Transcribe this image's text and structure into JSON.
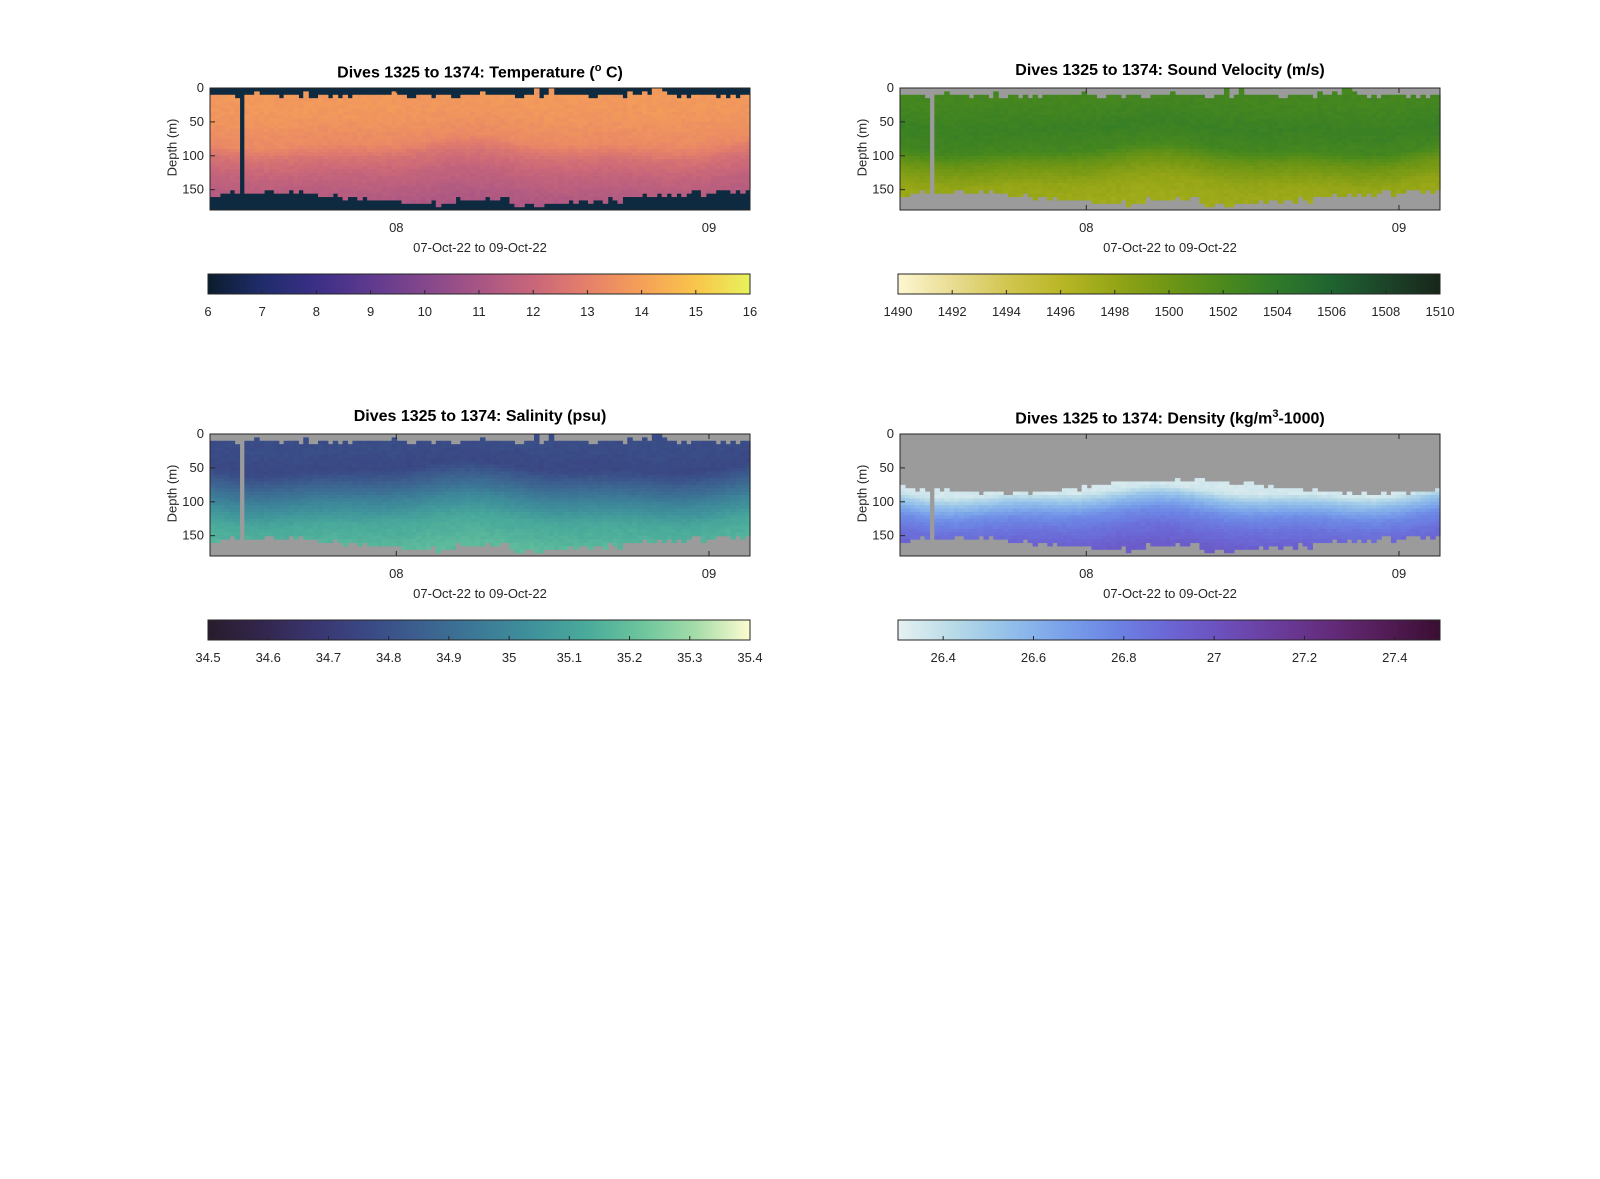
{
  "panels": [
    {
      "id": "temperature",
      "title_main": "Dives 1325 to 1374: Temperature (",
      "title_sup": "o",
      "title_end": " C)",
      "xlabel": "07-Oct-22 to 09-Oct-22",
      "ylabel": "Depth (m)",
      "background": "#0d2a40",
      "colormap": [
        "#0b1c2c",
        "#1f2c6b",
        "#3b2f86",
        "#5e3a8e",
        "#84478c",
        "#a75585",
        "#c8667a",
        "#e5806a",
        "#f5a058",
        "#f9c54b",
        "#e8f25c"
      ],
      "colorbar_ticks": [
        "6",
        "7",
        "8",
        "9",
        "10",
        "11",
        "12",
        "13",
        "14",
        "15",
        "16"
      ],
      "colorbar_range": [
        6,
        16
      ]
    },
    {
      "id": "sound-velocity",
      "title_main": "Dives 1325 to 1374: Sound Velocity (m/s)",
      "title_sup": "",
      "title_end": "",
      "xlabel": "07-Oct-22 to 09-Oct-22",
      "ylabel": "Depth (m)",
      "background": "#9b9b9b",
      "colormap": [
        "#fdf7d0",
        "#e9dc92",
        "#d2c652",
        "#b9b726",
        "#94a516",
        "#6f9615",
        "#4b8a1c",
        "#2f7a2a",
        "#1f6330",
        "#1c4429",
        "#17261a"
      ],
      "colorbar_ticks": [
        "1490",
        "1492",
        "1494",
        "1496",
        "1498",
        "1500",
        "1502",
        "1504",
        "1506",
        "1508",
        "1510"
      ],
      "colorbar_range": [
        1490,
        1510
      ]
    },
    {
      "id": "salinity",
      "title_main": "Dives 1325 to 1374: Salinity (psu)",
      "title_sup": "",
      "title_end": "",
      "xlabel": "07-Oct-22 to 09-Oct-22",
      "ylabel": "Depth (m)",
      "background": "#9b9b9b",
      "colormap": [
        "#271c2d",
        "#33264d",
        "#393670",
        "#3a4a86",
        "#3c6290",
        "#3c7a97",
        "#3f929b",
        "#4aab9b",
        "#6cc59c",
        "#a5dca9",
        "#fdfcd0"
      ],
      "colorbar_ticks": [
        "34.5",
        "34.6",
        "34.7",
        "34.8",
        "34.9",
        "35",
        "35.1",
        "35.2",
        "35.3",
        "35.4"
      ],
      "colorbar_range": [
        34.5,
        35.4
      ]
    },
    {
      "id": "density",
      "title_main": "Dives 1325 to 1374: Density (kg/m",
      "title_sup": "3",
      "title_end": "-1000)",
      "xlabel": "07-Oct-22 to 09-Oct-22",
      "ylabel": "Depth (m)",
      "background": "#9b9b9b",
      "colormap": [
        "#e6f1f1",
        "#b9dbe8",
        "#94c1ea",
        "#7aa3ea",
        "#6c84e4",
        "#6b66d4",
        "#6c4fbb",
        "#6a3c9b",
        "#632b7a",
        "#521c55",
        "#3a0e33"
      ],
      "colorbar_ticks": [
        "26.4",
        "26.6",
        "26.8",
        "27",
        "27.2",
        "27.4"
      ],
      "colorbar_range": [
        26.3,
        27.5
      ]
    }
  ],
  "chart_data": [
    {
      "type": "heatmap",
      "title": "Dives 1325 to 1374: Temperature (° C)",
      "xlabel": "07-Oct-22 to 09-Oct-22",
      "ylabel": "Depth (m)",
      "x_tick_labels": [
        "08",
        "09"
      ],
      "y_tick_labels": [
        "0",
        "50",
        "100",
        "150"
      ],
      "ylim": [
        180,
        0
      ],
      "colorbar": {
        "min": 6,
        "max": 16,
        "ticks": [
          6,
          7,
          8,
          9,
          10,
          11,
          12,
          13,
          14,
          15,
          16
        ]
      },
      "profile": {
        "depth": [
          5,
          40,
          80,
          100,
          130,
          170
        ],
        "value": [
          13.8,
          13.7,
          13.3,
          12.5,
          11.8,
          11.2
        ]
      }
    },
    {
      "type": "heatmap",
      "title": "Dives 1325 to 1374: Sound Velocity (m/s)",
      "xlabel": "07-Oct-22 to 09-Oct-22",
      "ylabel": "Depth (m)",
      "x_tick_labels": [
        "08",
        "09"
      ],
      "y_tick_labels": [
        "0",
        "50",
        "100",
        "150"
      ],
      "ylim": [
        180,
        0
      ],
      "colorbar": {
        "min": 1490,
        "max": 1510,
        "ticks": [
          1490,
          1492,
          1494,
          1496,
          1498,
          1500,
          1502,
          1504,
          1506,
          1508,
          1510
        ]
      },
      "profile": {
        "depth": [
          20,
          60,
          90,
          110,
          140,
          170
        ],
        "value": [
          1502.5,
          1503.2,
          1502.5,
          1500.2,
          1498.0,
          1497.4
        ]
      }
    },
    {
      "type": "heatmap",
      "title": "Dives 1325 to 1374: Salinity (psu)",
      "xlabel": "07-Oct-22 to 09-Oct-22",
      "ylabel": "Depth (m)",
      "x_tick_labels": [
        "08",
        "09"
      ],
      "y_tick_labels": [
        "0",
        "50",
        "100",
        "150"
      ],
      "ylim": [
        180,
        0
      ],
      "colorbar": {
        "min": 34.5,
        "max": 35.4,
        "ticks": [
          34.5,
          34.6,
          34.7,
          34.8,
          34.9,
          35,
          35.1,
          35.2,
          35.3,
          35.4
        ]
      },
      "profile": {
        "depth": [
          20,
          50,
          80,
          100,
          130,
          170
        ],
        "value": [
          34.78,
          34.76,
          34.9,
          35.0,
          35.12,
          35.18
        ]
      }
    },
    {
      "type": "heatmap",
      "title": "Dives 1325 to 1374: Density (kg/m³-1000)",
      "xlabel": "07-Oct-22 to 09-Oct-22",
      "ylabel": "Depth (m)",
      "x_tick_labels": [
        "08",
        "09"
      ],
      "y_tick_labels": [
        "0",
        "50",
        "100",
        "150"
      ],
      "ylim": [
        180,
        0
      ],
      "colorbar": {
        "min": 26.3,
        "max": 27.5,
        "ticks": [
          26.4,
          26.6,
          26.8,
          27,
          27.2,
          27.4
        ]
      },
      "profile": {
        "depth": [
          85,
          100,
          120,
          140,
          170
        ],
        "value": [
          26.35,
          26.55,
          26.75,
          26.85,
          26.95
        ]
      }
    }
  ]
}
